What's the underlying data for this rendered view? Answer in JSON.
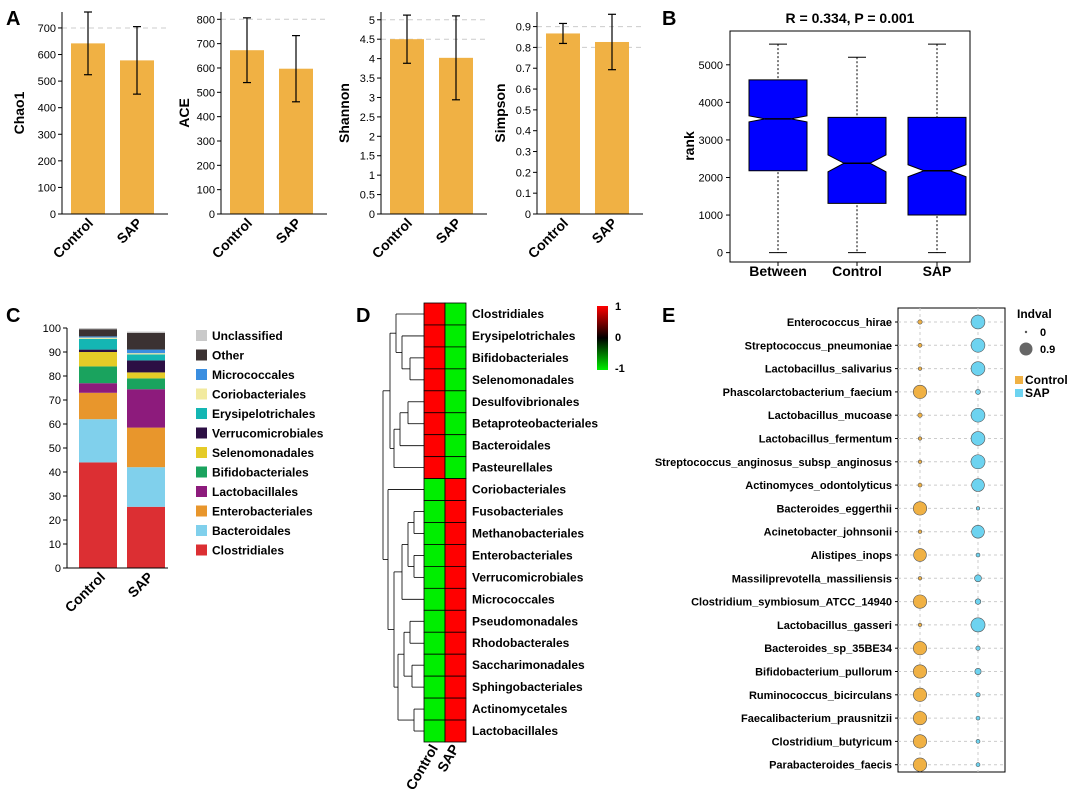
{
  "colors": {
    "bar": "#f0b144",
    "box": "#0000ff",
    "control": "#f0b144",
    "sap": "#6dd3f0",
    "heat_pos": "#ff0000",
    "heat_neg": "#00ee00",
    "grid": "#cccccc"
  },
  "panel_labels": [
    "A",
    "B",
    "C",
    "D",
    "E"
  ],
  "chart_data": [
    {
      "id": "alpha_chao1",
      "type": "bar",
      "categories": [
        "Control",
        "SAP"
      ],
      "values": [
        642,
        578
      ],
      "errors": [
        118,
        127
      ],
      "ylabel": "Chao1",
      "ylim": [
        0,
        760
      ],
      "yticks": [
        0,
        100,
        200,
        300,
        400,
        500,
        600,
        700
      ],
      "grid": [
        700
      ]
    },
    {
      "id": "alpha_ace",
      "type": "bar",
      "categories": [
        "Control",
        "SAP"
      ],
      "values": [
        673,
        597
      ],
      "errors": [
        133,
        136
      ],
      "ylabel": "ACE",
      "ylim": [
        0,
        830
      ],
      "yticks": [
        0,
        100,
        200,
        300,
        400,
        500,
        600,
        700,
        800
      ],
      "grid": [
        800
      ]
    },
    {
      "id": "alpha_shannon",
      "type": "bar",
      "categories": [
        "Control",
        "SAP"
      ],
      "values": [
        4.5,
        4.02
      ],
      "errors": [
        0.62,
        1.08
      ],
      "ylabel": "Shannon",
      "ylim": [
        0,
        5.2
      ],
      "yticks": [
        0,
        0.5,
        1.0,
        1.5,
        2.0,
        2.5,
        3.0,
        3.5,
        4.0,
        4.5,
        5.0
      ],
      "grid": [
        4.5,
        5.0
      ]
    },
    {
      "id": "alpha_simpson",
      "type": "bar",
      "categories": [
        "Control",
        "SAP"
      ],
      "values": [
        0.867,
        0.826
      ],
      "errors": [
        0.048,
        0.133
      ],
      "ylabel": "Simpson",
      "ylim": [
        0,
        0.97
      ],
      "yticks": [
        0,
        0.1,
        0.2,
        0.3,
        0.4,
        0.5,
        0.6,
        0.7,
        0.8,
        0.9
      ],
      "grid": [
        0.8,
        0.9
      ]
    },
    {
      "id": "anosim_box",
      "type": "boxplot",
      "title": "R = 0.334, P = 0.001",
      "categories": [
        "Between",
        "Control",
        "SAP"
      ],
      "ylabel": "rank",
      "ylim": [
        -250,
        5900
      ],
      "yticks": [
        0,
        1000,
        2000,
        3000,
        4000,
        5000
      ],
      "boxes": [
        {
          "min": 0,
          "q1": 2180,
          "median": 3560,
          "q3": 4600,
          "max": 5550,
          "notch_low": 3480,
          "notch_high": 3640
        },
        {
          "min": 0,
          "q1": 1310,
          "median": 2380,
          "q3": 3600,
          "max": 5200,
          "notch_low": 2150,
          "notch_high": 2600
        },
        {
          "min": 0,
          "q1": 1000,
          "median": 2180,
          "q3": 3600,
          "max": 5550,
          "notch_low": 2020,
          "notch_high": 2340
        }
      ]
    },
    {
      "id": "order_composition",
      "type": "stacked_bar",
      "categories": [
        "Control",
        "SAP"
      ],
      "ylim": [
        0,
        100
      ],
      "yticks": [
        0,
        10,
        20,
        30,
        40,
        50,
        60,
        70,
        80,
        90,
        100
      ],
      "series": [
        {
          "name": "Clostridiales",
          "color": "#dc2f33",
          "values": [
            44,
            25.5
          ]
        },
        {
          "name": "Bacteroidales",
          "color": "#80d0ec",
          "values": [
            18,
            16.5
          ]
        },
        {
          "name": "Enterobacteriales",
          "color": "#e8962c",
          "values": [
            11,
            16.5
          ]
        },
        {
          "name": "Lactobacillales",
          "color": "#8d1b7c",
          "values": [
            4,
            16
          ]
        },
        {
          "name": "Bifidobacteriales",
          "color": "#1aa35e",
          "values": [
            7,
            4.5
          ]
        },
        {
          "name": "Selenomonadales",
          "color": "#e5cb27",
          "values": [
            6,
            2.5
          ]
        },
        {
          "name": "Verrucomicrobiales",
          "color": "#2c0f44",
          "values": [
            1,
            5
          ]
        },
        {
          "name": "Erysipelotrichales",
          "color": "#14b6b3",
          "values": [
            4.5,
            2.5
          ]
        },
        {
          "name": "Coriobacteriales",
          "color": "#f2ea9f",
          "values": [
            0.5,
            0.5
          ]
        },
        {
          "name": "Micrococcales",
          "color": "#3a8ee0",
          "values": [
            0.5,
            1.5
          ]
        },
        {
          "name": "Other",
          "color": "#3b3232",
          "values": [
            3,
            7
          ]
        },
        {
          "name": "Unclassified",
          "color": "#c9c9c9",
          "values": [
            0.5,
            0.5
          ]
        }
      ],
      "legend_order": [
        "Unclassified",
        "Other",
        "Micrococcales",
        "Coriobacteriales",
        "Erysipelotrichales",
        "Verrucomicrobiales",
        "Selenomonadales",
        "Bifidobacteriales",
        "Lactobacillales",
        "Enterobacteriales",
        "Bacteroidales",
        "Clostridiales"
      ]
    },
    {
      "id": "order_heatmap",
      "type": "heatmap",
      "columns": [
        "Control",
        "SAP"
      ],
      "rows": [
        "Clostridiales",
        "Erysipelotrichales",
        "Bifidobacteriales",
        "Selenomonadales",
        "Desulfovibrionales",
        "Betaproteobacteriales",
        "Bacteroidales",
        "Pasteurellales",
        "Coriobacteriales",
        "Fusobacteriales",
        "Methanobacteriales",
        "Enterobacteriales",
        "Verrucomicrobiales",
        "Micrococcales",
        "Pseudomonadales",
        "Rhodobacterales",
        "Saccharimonadales",
        "Sphingobacteriales",
        "Actinomycetales",
        "Lactobacillales"
      ],
      "values": [
        [
          1,
          -1
        ],
        [
          1,
          -1
        ],
        [
          1,
          -1
        ],
        [
          1,
          -1
        ],
        [
          1,
          -1
        ],
        [
          1,
          -1
        ],
        [
          1,
          -1
        ],
        [
          1,
          -1
        ],
        [
          -1,
          1
        ],
        [
          -1,
          1
        ],
        [
          -1,
          1
        ],
        [
          -1,
          1
        ],
        [
          -1,
          1
        ],
        [
          -1,
          1
        ],
        [
          -1,
          1
        ],
        [
          -1,
          1
        ],
        [
          -1,
          1
        ],
        [
          -1,
          1
        ],
        [
          -1,
          1
        ],
        [
          -1,
          1
        ]
      ],
      "colorbar_ticks": [
        "1",
        "0",
        "-1"
      ]
    },
    {
      "id": "indicator_species",
      "type": "bubble",
      "groups": [
        "Control",
        "SAP"
      ],
      "size_legend_title": "Indval",
      "size_legend_values": [
        "0",
        "0.9"
      ],
      "species": [
        "Enterococcus_hirae",
        "Streptococcus_pneumoniae",
        "Lactobacillus_salivarius",
        "Phascolarctobacterium_faecium",
        "Lactobacillus_mucoase",
        "Lactobacillus_fermentum",
        "Streptococcus_anginosus_subsp_anginosus",
        "Actinomyces_odontolyticus",
        "Bacteroides_eggerthii",
        "Acinetobacter_johnsonii",
        "Alistipes_inops",
        "Massiliprevotella_massiliensis",
        "Clostridium_symbiosum_ATCC_14940",
        "Lactobacillus_gasseri",
        "Bacteroides_sp_35BE34",
        "Bifidobacterium_pullorum",
        "Ruminococcus_bicirculans",
        "Faecalibacterium_prausnitzii",
        "Clostridium_butyricum",
        "Parabacteroides_faecis"
      ],
      "indval_control": [
        0.15,
        0.12,
        0.08,
        0.85,
        0.15,
        0.08,
        0.08,
        0.12,
        0.85,
        0.08,
        0.8,
        0.08,
        0.85,
        0.08,
        0.85,
        0.85,
        0.85,
        0.85,
        0.85,
        0.85
      ],
      "indval_sap": [
        0.88,
        0.88,
        0.88,
        0.2,
        0.88,
        0.88,
        0.9,
        0.8,
        0.08,
        0.8,
        0.12,
        0.35,
        0.25,
        0.9,
        0.15,
        0.3,
        0.15,
        0.12,
        0.12,
        0.12
      ]
    }
  ]
}
